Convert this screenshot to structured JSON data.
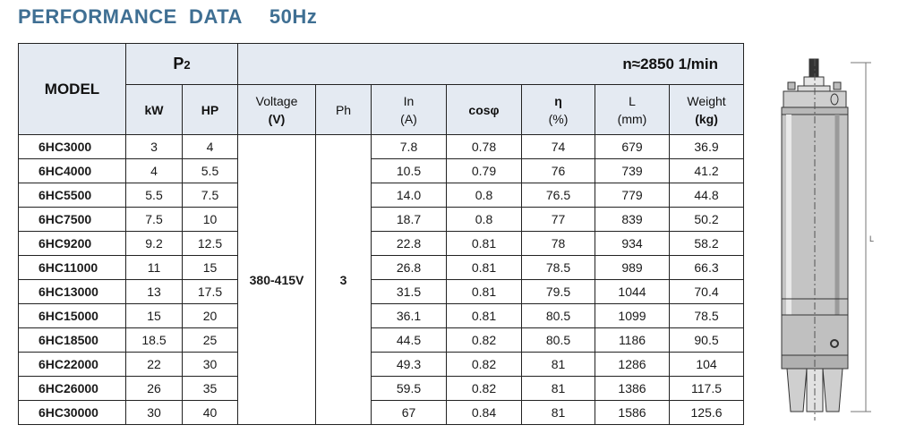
{
  "title": {
    "main": "PERFORMANCE  DATA",
    "freq": "50Hz"
  },
  "table": {
    "model_header": "MODEL",
    "p2_header": "P",
    "p2_sub": "2",
    "speed_header": "n≈2850 1/min",
    "columns": {
      "kw": "kW",
      "hp": "HP",
      "voltage_name": "Voltage",
      "voltage_unit": "(V)",
      "ph": "Ph",
      "in_name": "In",
      "in_unit": "(A)",
      "cos": "cosφ",
      "eta_name": "η",
      "eta_unit": "(%)",
      "l_name": "L",
      "l_unit": "(mm)",
      "weight_name": "Weight",
      "weight_unit": "(kg)"
    },
    "voltage_value": "380-415V",
    "ph_value": "3",
    "rows": [
      {
        "model": "6HC3000",
        "kw": "3",
        "hp": "4",
        "in": "7.8",
        "cos": "0.78",
        "eta": "74",
        "l": "679",
        "weight": "36.9"
      },
      {
        "model": "6HC4000",
        "kw": "4",
        "hp": "5.5",
        "in": "10.5",
        "cos": "0.79",
        "eta": "76",
        "l": "739",
        "weight": "41.2"
      },
      {
        "model": "6HC5500",
        "kw": "5.5",
        "hp": "7.5",
        "in": "14.0",
        "cos": "0.8",
        "eta": "76.5",
        "l": "779",
        "weight": "44.8"
      },
      {
        "model": "6HC7500",
        "kw": "7.5",
        "hp": "10",
        "in": "18.7",
        "cos": "0.8",
        "eta": "77",
        "l": "839",
        "weight": "50.2"
      },
      {
        "model": "6HC9200",
        "kw": "9.2",
        "hp": "12.5",
        "in": "22.8",
        "cos": "0.81",
        "eta": "78",
        "l": "934",
        "weight": "58.2"
      },
      {
        "model": "6HC11000",
        "kw": "11",
        "hp": "15",
        "in": "26.8",
        "cos": "0.81",
        "eta": "78.5",
        "l": "989",
        "weight": "66.3"
      },
      {
        "model": "6HC13000",
        "kw": "13",
        "hp": "17.5",
        "in": "31.5",
        "cos": "0.81",
        "eta": "79.5",
        "l": "1044",
        "weight": "70.4"
      },
      {
        "model": "6HC15000",
        "kw": "15",
        "hp": "20",
        "in": "36.1",
        "cos": "0.81",
        "eta": "80.5",
        "l": "1099",
        "weight": "78.5"
      },
      {
        "model": "6HC18500",
        "kw": "18.5",
        "hp": "25",
        "in": "44.5",
        "cos": "0.82",
        "eta": "80.5",
        "l": "1186",
        "weight": "90.5"
      },
      {
        "model": "6HC22000",
        "kw": "22",
        "hp": "30",
        "in": "49.3",
        "cos": "0.82",
        "eta": "81",
        "l": "1286",
        "weight": "104"
      },
      {
        "model": "6HC26000",
        "kw": "26",
        "hp": "35",
        "in": "59.5",
        "cos": "0.82",
        "eta": "81",
        "l": "1386",
        "weight": "117.5"
      },
      {
        "model": "6HC30000",
        "kw": "30",
        "hp": "40",
        "in": "67",
        "cos": "0.84",
        "eta": "81",
        "l": "1586",
        "weight": "125.6"
      }
    ]
  },
  "drawing": {
    "dimension_label": "L"
  },
  "colors": {
    "title": "#3f6f93",
    "header_bg": "#e4eaf2"
  }
}
